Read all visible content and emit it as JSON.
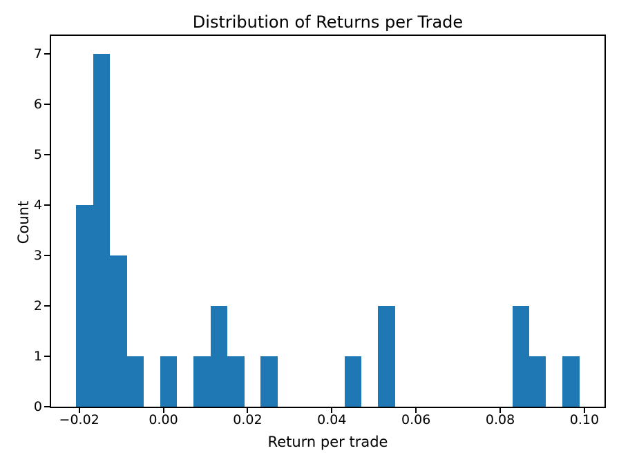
{
  "chart_data": {
    "type": "bar",
    "subtype": "histogram",
    "title": "Distribution of Returns per Trade",
    "xlabel": "Return per trade",
    "ylabel": "Count",
    "bar_color": "#1f77b4",
    "axis_color": "#000000",
    "text_color": "#000000",
    "background_color": "#ffffff",
    "grid": false,
    "legend": null,
    "n_bins": 30,
    "total_observations": 28,
    "bin_edges": [
      -0.0207,
      -0.01672,
      -0.01273,
      -0.00875,
      -0.00477,
      -0.00078,
      0.0032,
      0.00718,
      0.01117,
      0.01515,
      0.01913,
      0.02312,
      0.0271,
      0.03108,
      0.03507,
      0.03905,
      0.04303,
      0.04702,
      0.051,
      0.05498,
      0.05897,
      0.06295,
      0.06693,
      0.07092,
      0.0749,
      0.07888,
      0.08287,
      0.08685,
      0.09083,
      0.09482,
      0.0988
    ],
    "counts": [
      4,
      7,
      3,
      1,
      0,
      1,
      0,
      1,
      2,
      1,
      0,
      1,
      0,
      0,
      0,
      0,
      1,
      0,
      2,
      0,
      0,
      0,
      0,
      0,
      0,
      0,
      2,
      1,
      0,
      1
    ],
    "xlim": [
      -0.026675,
      0.104775
    ],
    "ylim": [
      0,
      7.35
    ],
    "xticks": [
      {
        "value": -0.02,
        "label": "−0.02"
      },
      {
        "value": 0.0,
        "label": "0.00"
      },
      {
        "value": 0.02,
        "label": "0.02"
      },
      {
        "value": 0.04,
        "label": "0.04"
      },
      {
        "value": 0.06,
        "label": "0.06"
      },
      {
        "value": 0.08,
        "label": "0.08"
      },
      {
        "value": 0.1,
        "label": "0.10"
      }
    ],
    "yticks": [
      {
        "value": 0,
        "label": "0"
      },
      {
        "value": 1,
        "label": "1"
      },
      {
        "value": 2,
        "label": "2"
      },
      {
        "value": 3,
        "label": "3"
      },
      {
        "value": 4,
        "label": "4"
      },
      {
        "value": 5,
        "label": "5"
      },
      {
        "value": 6,
        "label": "6"
      },
      {
        "value": 7,
        "label": "7"
      }
    ]
  }
}
